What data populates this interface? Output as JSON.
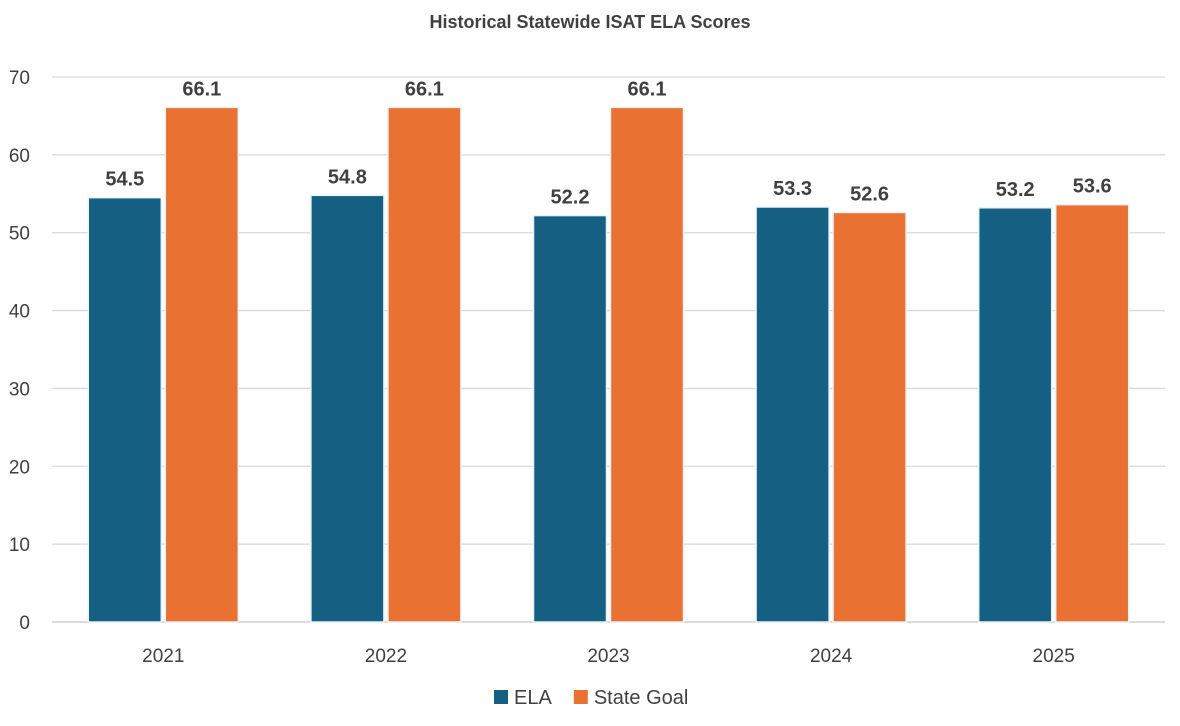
{
  "chart_data": {
    "type": "bar",
    "title": "Historical Statewide ISAT ELA Scores",
    "categories": [
      "2021",
      "2022",
      "2023",
      "2024",
      "2025"
    ],
    "series": [
      {
        "name": "ELA",
        "values": [
          54.5,
          54.8,
          52.2,
          53.3,
          53.2
        ],
        "color": "#156082"
      },
      {
        "name": "State Goal",
        "values": [
          66.1,
          66.1,
          66.1,
          52.6,
          53.6
        ],
        "color": "#E97132"
      }
    ],
    "yticks": [
      0,
      10,
      20,
      30,
      40,
      50,
      60,
      70
    ],
    "ylim": [
      0,
      70
    ],
    "grid": true,
    "legend": "bottom",
    "data_labels": true,
    "xlabel": "",
    "ylabel": ""
  }
}
